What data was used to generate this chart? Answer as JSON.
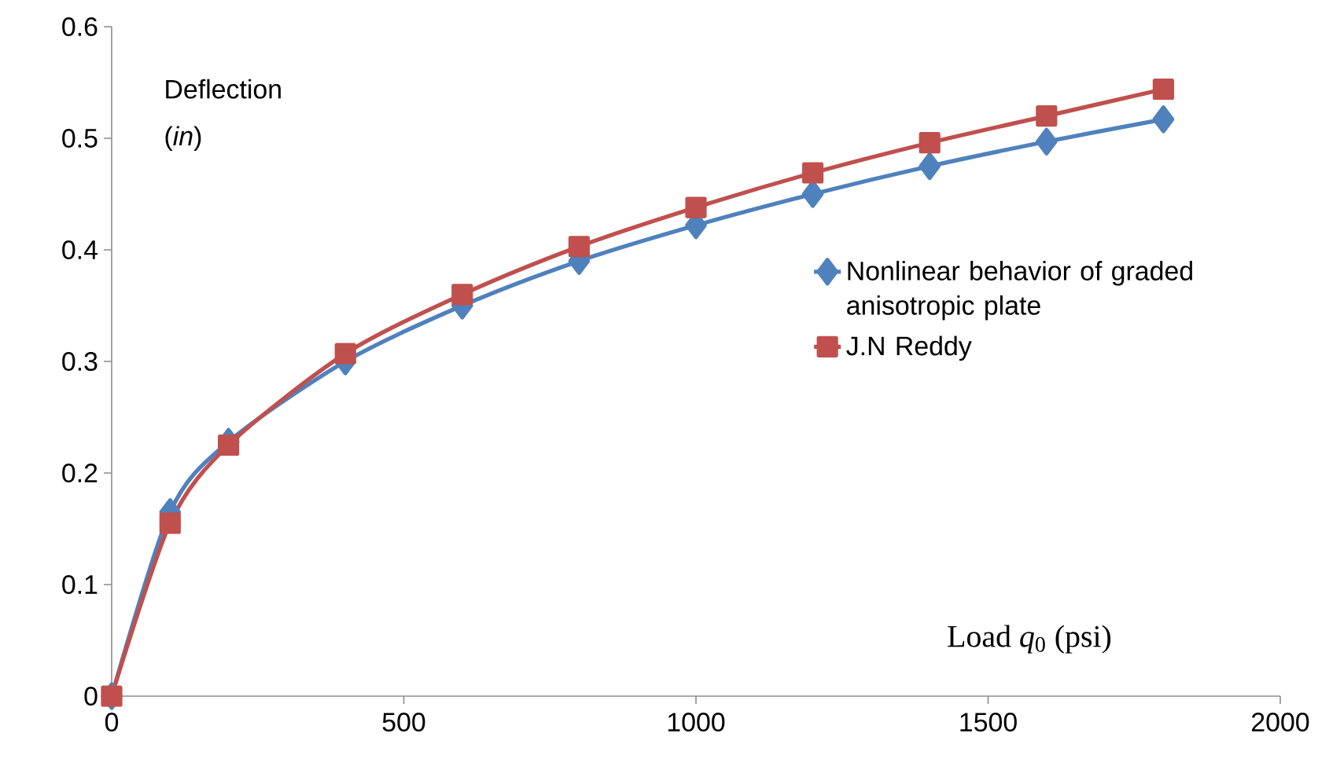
{
  "chart_data": {
    "type": "line",
    "xlabel": "Load *q*$_{0}$ (psi)",
    "ylabel": "Deflection (*in*)",
    "x": [
      0,
      100,
      200,
      400,
      600,
      800,
      1000,
      1200,
      1400,
      1600,
      1800
    ],
    "series": [
      {
        "name": "Nonlinear behavior of graded anisotropic plate",
        "color": "#4f81bd",
        "marker": "diamond",
        "values": [
          0,
          0.165,
          0.228,
          0.3,
          0.35,
          0.39,
          0.422,
          0.45,
          0.475,
          0.497,
          0.517
        ]
      },
      {
        "name": "J.N Reddy",
        "color": "#c0504d",
        "marker": "square",
        "values": [
          0,
          0.155,
          0.225,
          0.307,
          0.36,
          0.403,
          0.438,
          0.469,
          0.496,
          0.52,
          0.544
        ]
      }
    ],
    "xlim": [
      0,
      2000
    ],
    "xticks": [
      0,
      500,
      1000,
      1500,
      2000
    ],
    "ylim": [
      0,
      0.6
    ],
    "yticks": [
      0,
      0.1,
      0.2,
      0.3,
      0.4,
      0.5,
      0.6
    ],
    "grid": false,
    "legend": "right",
    "line_style": "solid"
  }
}
